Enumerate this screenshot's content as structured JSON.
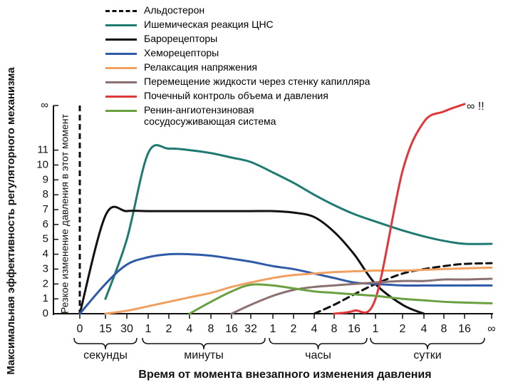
{
  "chart_data": {
    "type": "line",
    "xlabel": "Время от момента внезапного изменения давления",
    "ylabel": "Максимальная эффективность регуляторного механизма",
    "annotations": [
      "Резкое изменение давления в этот момент",
      "∞ !!"
    ],
    "categories": [
      "0",
      "15",
      "30",
      "1",
      "2",
      "4",
      "8",
      "16",
      "32",
      "1",
      "2",
      "4",
      "8",
      "16",
      "1",
      "2",
      "4",
      "8",
      "16",
      "∞"
    ],
    "x_groups": [
      "секунды",
      "минуты",
      "часы",
      "сутки"
    ],
    "ylim": [
      0,
      14
    ],
    "yticks": [
      0,
      1,
      2,
      3,
      4,
      5,
      6,
      7,
      8,
      9,
      10,
      11,
      {
        "value": 14,
        "label": "∞"
      }
    ],
    "series": [
      {
        "name": "Альдостерон",
        "color": "#111111",
        "style": "dashed",
        "values": [
          null,
          null,
          null,
          null,
          null,
          null,
          null,
          null,
          null,
          null,
          null,
          0,
          0.6,
          1.3,
          2.0,
          2.7,
          3.0,
          3.2,
          3.35,
          3.4
        ]
      },
      {
        "name": "Ишемическая реакция ЦНС",
        "color": "#1f7a72",
        "style": "solid",
        "values": [
          null,
          1,
          5,
          10.8,
          11.1,
          11.0,
          10.8,
          10.5,
          10.2,
          9.5,
          8.8,
          8.0,
          7.3,
          6.7,
          6.2,
          5.6,
          5.2,
          4.9,
          4.7,
          4.7
        ]
      },
      {
        "name": "Барорецепторы",
        "color": "#111111",
        "style": "solid",
        "values": [
          0,
          6.6,
          6.9,
          6.9,
          6.9,
          6.9,
          6.9,
          6.9,
          6.9,
          6.9,
          6.8,
          6.5,
          5.5,
          4.0,
          2.0,
          0.6,
          0,
          null,
          null,
          null
        ]
      },
      {
        "name": "Хеморецепторы",
        "color": "#2f5aa8",
        "style": "solid",
        "values": [
          0,
          2.0,
          3.3,
          3.8,
          4.0,
          4.0,
          3.9,
          3.7,
          3.5,
          3.2,
          3.0,
          2.7,
          2.4,
          2.1,
          2.0,
          1.9,
          1.9,
          1.9,
          1.9,
          1.9
        ]
      },
      {
        "name": "Релаксация напряжения",
        "color": "#f0a060",
        "style": "solid",
        "values": [
          null,
          0,
          0.2,
          0.5,
          0.8,
          1.1,
          1.4,
          1.8,
          2.1,
          2.4,
          2.6,
          2.7,
          2.8,
          2.85,
          2.9,
          2.9,
          2.95,
          3.0,
          3.05,
          3.1
        ]
      },
      {
        "name": "Перемещение жидкости через стенку капилляра",
        "color": "#8a7070",
        "style": "solid",
        "values": [
          null,
          null,
          null,
          null,
          null,
          null,
          null,
          0,
          0.6,
          1.2,
          1.6,
          1.8,
          1.9,
          2.0,
          2.1,
          2.2,
          2.2,
          2.3,
          2.3,
          2.35
        ]
      },
      {
        "name": "Почечный контроль объема и давления",
        "color": "#e0383a",
        "style": "solid",
        "values": [
          null,
          null,
          null,
          null,
          null,
          null,
          null,
          null,
          null,
          null,
          null,
          null,
          0,
          0.2,
          1.0,
          9.6,
          12.9,
          13.6,
          14.1,
          null
        ]
      },
      {
        "name": "Ренин-ангиотензиновая сосудосуживающая система",
        "color": "#6aa040",
        "style": "solid",
        "values": [
          null,
          null,
          null,
          null,
          null,
          0,
          0.8,
          1.5,
          1.95,
          1.9,
          1.7,
          1.5,
          1.4,
          1.3,
          1.2,
          1.0,
          0.9,
          0.8,
          0.75,
          0.7
        ]
      }
    ]
  }
}
